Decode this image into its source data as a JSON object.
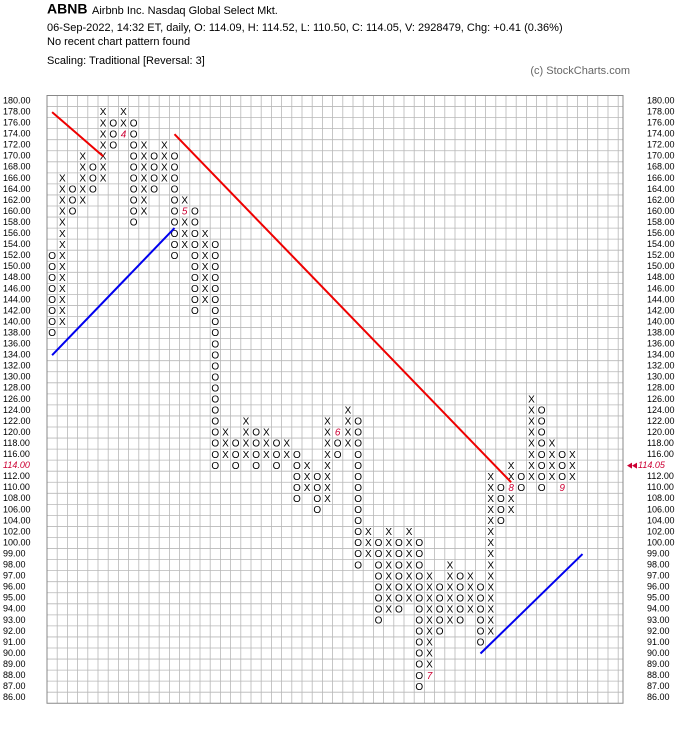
{
  "chart_data": {
    "type": "point-and-figure",
    "symbol": "ABNB",
    "company": "Airbnb Inc.  Nasdaq Global Select Mkt.",
    "quote": "06-Sep-2022, 14:32 ET, daily, O: 114.09, H: 114.52, L: 110.50, C: 114.05, V: 2928479, Chg: +0.41 (0.36%)",
    "pattern": "No recent chart pattern found",
    "scaling": "Scaling: Traditional [Reversal: 3]",
    "credit": "(c) StockCharts.com",
    "x_symbol": "X",
    "o_symbol": "O",
    "grid": true,
    "x_color": "#000000",
    "o_color": "#000000",
    "marker_color": "#cc0033",
    "last_box": 114,
    "last_price": {
      "value": 114.05,
      "label": "114.05"
    },
    "yticks": [
      {
        "value": 180,
        "label": "180.00"
      },
      {
        "value": 178,
        "label": "178.00"
      },
      {
        "value": 176,
        "label": "176.00"
      },
      {
        "value": 174,
        "label": "174.00"
      },
      {
        "value": 172,
        "label": "172.00"
      },
      {
        "value": 170,
        "label": "170.00"
      },
      {
        "value": 168,
        "label": "168.00"
      },
      {
        "value": 166,
        "label": "166.00"
      },
      {
        "value": 164,
        "label": "164.00"
      },
      {
        "value": 162,
        "label": "162.00"
      },
      {
        "value": 160,
        "label": "160.00"
      },
      {
        "value": 158,
        "label": "158.00"
      },
      {
        "value": 156,
        "label": "156.00"
      },
      {
        "value": 154,
        "label": "154.00"
      },
      {
        "value": 152,
        "label": "152.00"
      },
      {
        "value": 150,
        "label": "150.00"
      },
      {
        "value": 148,
        "label": "148.00"
      },
      {
        "value": 146,
        "label": "146.00"
      },
      {
        "value": 144,
        "label": "144.00"
      },
      {
        "value": 142,
        "label": "142.00"
      },
      {
        "value": 140,
        "label": "140.00"
      },
      {
        "value": 138,
        "label": "138.00"
      },
      {
        "value": 136,
        "label": "136.00"
      },
      {
        "value": 134,
        "label": "134.00"
      },
      {
        "value": 132,
        "label": "132.00"
      },
      {
        "value": 130,
        "label": "130.00"
      },
      {
        "value": 128,
        "label": "128.00"
      },
      {
        "value": 126,
        "label": "126.00"
      },
      {
        "value": 124,
        "label": "124.00"
      },
      {
        "value": 122,
        "label": "122.00"
      },
      {
        "value": 120,
        "label": "120.00"
      },
      {
        "value": 118,
        "label": "118.00"
      },
      {
        "value": 116,
        "label": "116.00"
      },
      {
        "value": 114,
        "label": "114.00"
      },
      {
        "value": 112,
        "label": "112.00"
      },
      {
        "value": 110,
        "label": "110.00"
      },
      {
        "value": 108,
        "label": "108.00"
      },
      {
        "value": 106,
        "label": "106.00"
      },
      {
        "value": 104,
        "label": "104.00"
      },
      {
        "value": 102,
        "label": "102.00"
      },
      {
        "value": 100,
        "label": "100.00"
      },
      {
        "value": 99,
        "label": "99.00"
      },
      {
        "value": 98,
        "label": "98.00"
      },
      {
        "value": 97,
        "label": "97.00"
      },
      {
        "value": 96,
        "label": "96.00"
      },
      {
        "value": 95,
        "label": "95.00"
      },
      {
        "value": 94,
        "label": "94.00"
      },
      {
        "value": 93,
        "label": "93.00"
      },
      {
        "value": 92,
        "label": "92.00"
      },
      {
        "value": 91,
        "label": "91.00"
      },
      {
        "value": 90,
        "label": "90.00"
      },
      {
        "value": 89,
        "label": "89.00"
      },
      {
        "value": 88,
        "label": "88.00"
      },
      {
        "value": 87,
        "label": "87.00"
      },
      {
        "value": 86,
        "label": "86.00"
      }
    ],
    "columns": [
      {
        "kind": "O",
        "from": 152,
        "to": 138
      },
      {
        "kind": "X",
        "from": 140,
        "to": 166
      },
      {
        "kind": "O",
        "from": 164,
        "to": 160
      },
      {
        "kind": "X",
        "from": 162,
        "to": 170
      },
      {
        "kind": "O",
        "from": 168,
        "to": 164
      },
      {
        "kind": "X",
        "from": 166,
        "to": 178
      },
      {
        "kind": "O",
        "from": 176,
        "to": 172
      },
      {
        "kind": "X",
        "from": 174,
        "to": 178,
        "marker": {
          "level": 174,
          "label": "4"
        }
      },
      {
        "kind": "O",
        "from": 176,
        "to": 158
      },
      {
        "kind": "X",
        "from": 160,
        "to": 172
      },
      {
        "kind": "O",
        "from": 170,
        "to": 164
      },
      {
        "kind": "X",
        "from": 166,
        "to": 172
      },
      {
        "kind": "O",
        "from": 170,
        "to": 152
      },
      {
        "kind": "X",
        "from": 154,
        "to": 162,
        "marker": {
          "level": 160,
          "label": "5"
        }
      },
      {
        "kind": "O",
        "from": 160,
        "to": 142
      },
      {
        "kind": "X",
        "from": 144,
        "to": 156
      },
      {
        "kind": "O",
        "from": 154,
        "to": 114
      },
      {
        "kind": "X",
        "from": 116,
        "to": 120
      },
      {
        "kind": "O",
        "from": 118,
        "to": 114
      },
      {
        "kind": "X",
        "from": 116,
        "to": 122
      },
      {
        "kind": "O",
        "from": 120,
        "to": 114
      },
      {
        "kind": "X",
        "from": 116,
        "to": 120
      },
      {
        "kind": "O",
        "from": 118,
        "to": 114
      },
      {
        "kind": "X",
        "from": 116,
        "to": 118
      },
      {
        "kind": "O",
        "from": 116,
        "to": 108
      },
      {
        "kind": "X",
        "from": 110,
        "to": 114
      },
      {
        "kind": "O",
        "from": 112,
        "to": 106
      },
      {
        "kind": "X",
        "from": 108,
        "to": 122
      },
      {
        "kind": "O",
        "from": 120,
        "to": 116,
        "marker": {
          "level": 120,
          "label": "6"
        }
      },
      {
        "kind": "X",
        "from": 118,
        "to": 124
      },
      {
        "kind": "O",
        "from": 122,
        "to": 98
      },
      {
        "kind": "X",
        "from": 99,
        "to": 102
      },
      {
        "kind": "O",
        "from": 100,
        "to": 93
      },
      {
        "kind": "X",
        "from": 94,
        "to": 102
      },
      {
        "kind": "O",
        "from": 100,
        "to": 94
      },
      {
        "kind": "X",
        "from": 95,
        "to": 102
      },
      {
        "kind": "O",
        "from": 100,
        "to": 87
      },
      {
        "kind": "X",
        "from": 88,
        "to": 97,
        "marker": {
          "level": 88,
          "label": "7"
        }
      },
      {
        "kind": "O",
        "from": 96,
        "to": 92
      },
      {
        "kind": "X",
        "from": 93,
        "to": 98
      },
      {
        "kind": "O",
        "from": 97,
        "to": 93
      },
      {
        "kind": "X",
        "from": 94,
        "to": 97
      },
      {
        "kind": "O",
        "from": 96,
        "to": 91
      },
      {
        "kind": "X",
        "from": 92,
        "to": 112
      },
      {
        "kind": "O",
        "from": 110,
        "to": 104
      },
      {
        "kind": "X",
        "from": 106,
        "to": 114,
        "marker": {
          "level": 110,
          "label": "8"
        }
      },
      {
        "kind": "O",
        "from": 112,
        "to": 110
      },
      {
        "kind": "X",
        "from": 112,
        "to": 126
      },
      {
        "kind": "O",
        "from": 124,
        "to": 110
      },
      {
        "kind": "X",
        "from": 112,
        "to": 118
      },
      {
        "kind": "O",
        "from": 116,
        "to": 110,
        "marker": {
          "level": 110,
          "label": "9"
        }
      },
      {
        "kind": "X",
        "from": 112,
        "to": 116
      }
    ],
    "trendlines": [
      {
        "color": "#ee0000",
        "from_column": 0,
        "from_level": 178,
        "to_column": 5,
        "to_level": 170
      },
      {
        "color": "#ee0000",
        "from_column": 12,
        "from_level": 174,
        "to_column": 45,
        "to_level": 111
      },
      {
        "color": "#0000ee",
        "from_column": 0,
        "from_level": 134,
        "to_column": 12,
        "to_level": 157
      },
      {
        "color": "#0000ee",
        "from_column": 42,
        "from_level": 90,
        "to_column": 52,
        "to_level": 99
      }
    ]
  }
}
